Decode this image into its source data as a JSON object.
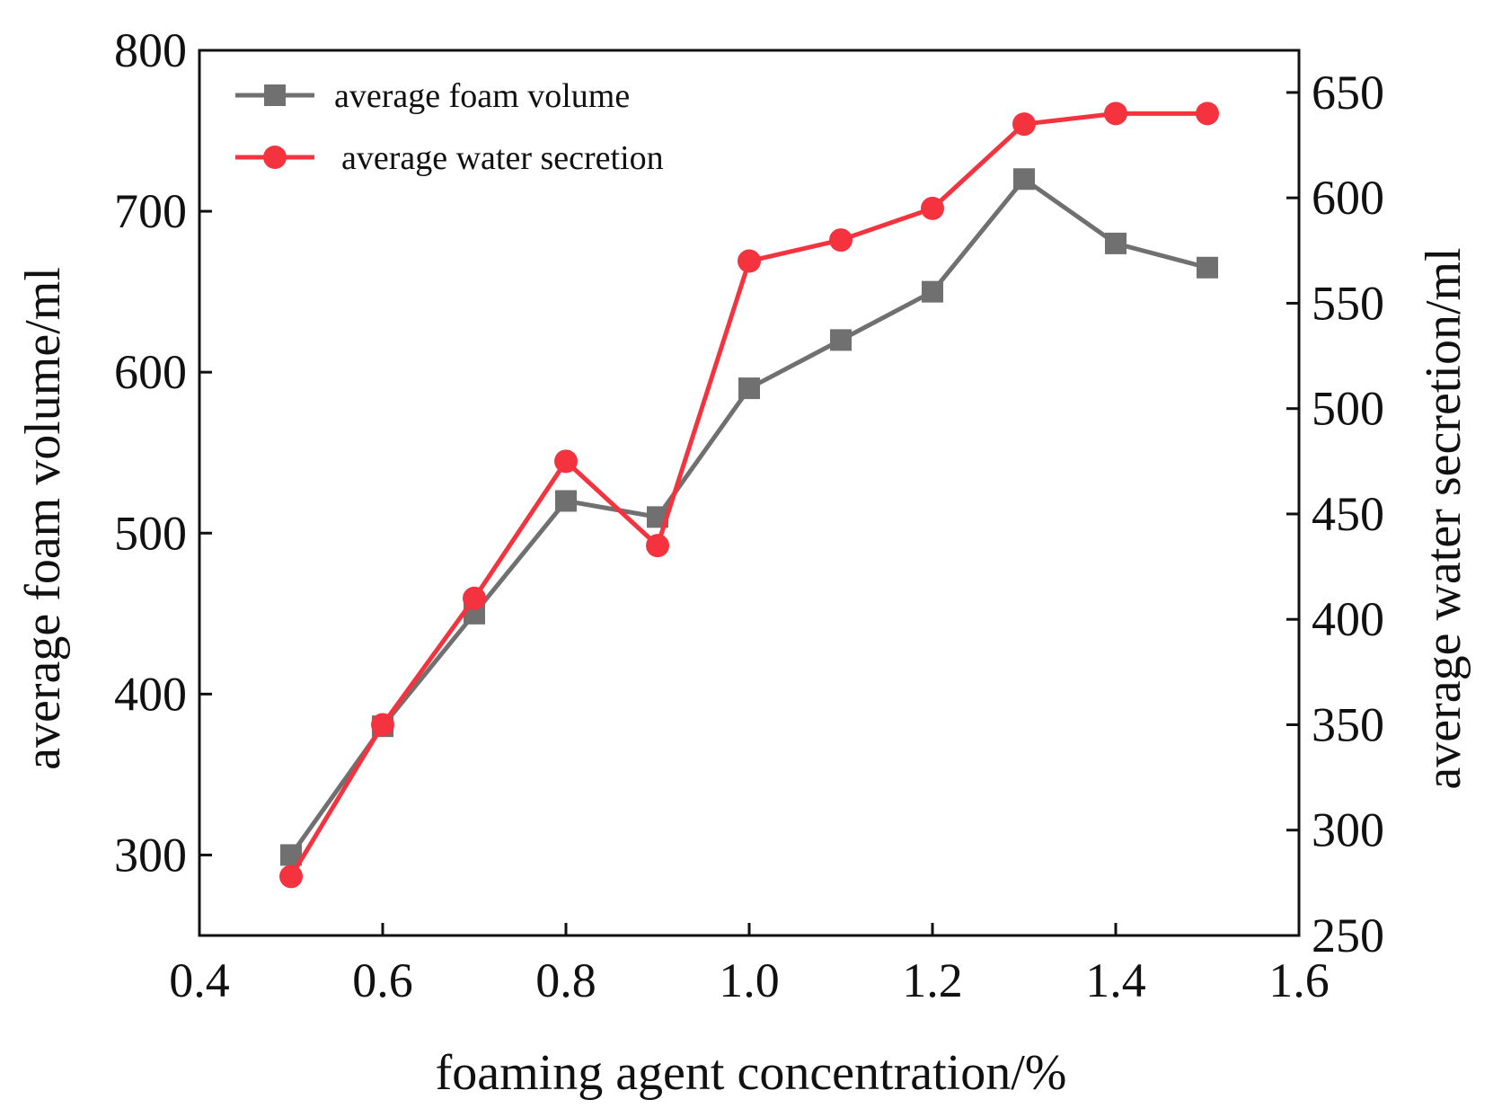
{
  "chart_data": {
    "type": "line",
    "title": "",
    "xlabel": "foaming agent concentration/%",
    "ylabel": "average foam volume/ml",
    "y2label": "average water secretion/ml",
    "xlim": [
      0.4,
      1.6
    ],
    "ylim": [
      250,
      800
    ],
    "y2lim": [
      250,
      670
    ],
    "xticks": [
      "0.4",
      "0.6",
      "0.8",
      "1.0",
      "1.2",
      "1.4",
      "1.6"
    ],
    "yticks": [
      "300",
      "400",
      "500",
      "600",
      "700",
      "800"
    ],
    "y2ticks": [
      "250",
      "300",
      "350",
      "400",
      "450",
      "500",
      "550",
      "600",
      "650"
    ],
    "legend_position": "top-left",
    "x": [
      0.5,
      0.6,
      0.7,
      0.8,
      0.9,
      1.0,
      1.1,
      1.2,
      1.3,
      1.4,
      1.5
    ],
    "series": [
      {
        "name": "average foam volume",
        "axis": "left",
        "marker": "square",
        "color": "#707070",
        "values": [
          300,
          380,
          450,
          520,
          510,
          590,
          620,
          650,
          720,
          680,
          665
        ]
      },
      {
        "name": "average water secretion",
        "axis": "right",
        "marker": "circle",
        "color": "#f5333f",
        "values": [
          278,
          350,
          410,
          475,
          435,
          570,
          580,
          595,
          635,
          640,
          640
        ]
      }
    ]
  }
}
